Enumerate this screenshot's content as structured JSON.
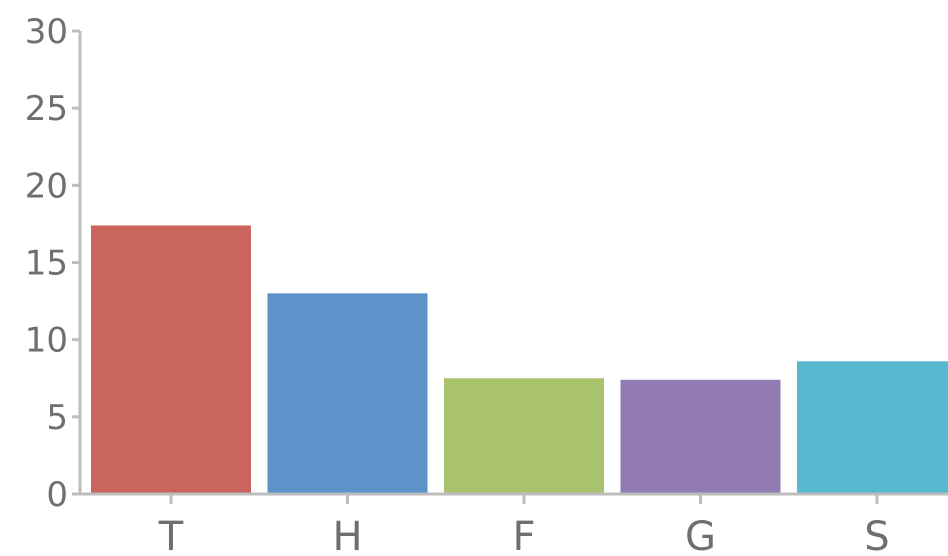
{
  "chart_data": {
    "type": "bar",
    "categories": [
      "T",
      "H",
      "F",
      "G",
      "S"
    ],
    "values": [
      17.4,
      13.0,
      7.5,
      7.4,
      8.6
    ],
    "colors": [
      "#c9655c",
      "#5d93c8",
      "#a9c26c",
      "#917bb2",
      "#58b8d0"
    ],
    "yticks": [
      "0",
      "5",
      "10",
      "15",
      "20",
      "25",
      "30"
    ],
    "ylim": [
      0,
      30
    ],
    "title": "",
    "xlabel": "",
    "ylabel": "",
    "grid": false,
    "legend": "none"
  },
  "axis_color": "#bdbdbd"
}
